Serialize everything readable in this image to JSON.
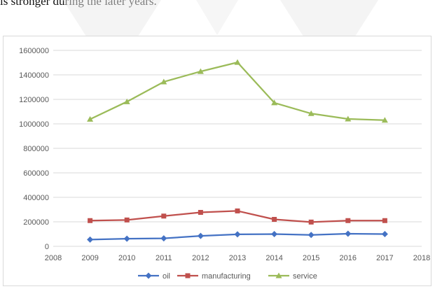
{
  "document": {
    "text_fragment": "is stronger during the later years."
  },
  "colors": {
    "oil": "#4472c4",
    "manufacturing": "#c0504d",
    "service": "#9bbb59",
    "grid": "#d9d9d9",
    "axis_text": "#595959"
  },
  "chart_data": {
    "type": "line",
    "xlabel": "",
    "ylabel": "",
    "xlim": [
      2008,
      2018
    ],
    "ylim": [
      0,
      1600000
    ],
    "x_ticks": [
      "2008",
      "2009",
      "2010",
      "2011",
      "2012",
      "2013",
      "2014",
      "2015",
      "2016",
      "2017",
      "2018"
    ],
    "y_ticks": [
      "0",
      "200000",
      "400000",
      "600000",
      "800000",
      "1000000",
      "1200000",
      "1400000",
      "1600000"
    ],
    "x": [
      2009,
      2010,
      2011,
      2012,
      2013,
      2014,
      2015,
      2016,
      2017
    ],
    "grid": true,
    "legend_position": "bottom",
    "series": [
      {
        "name": "oil",
        "marker": "diamond",
        "color": "#4472c4",
        "values": [
          55000,
          62000,
          65000,
          85000,
          98000,
          100000,
          93000,
          103000,
          100000
        ]
      },
      {
        "name": "manufacturing",
        "marker": "square",
        "color": "#c0504d",
        "values": [
          210000,
          215000,
          247000,
          277000,
          289000,
          220000,
          198000,
          210000,
          210000
        ]
      },
      {
        "name": "service",
        "marker": "triangle",
        "color": "#9bbb59",
        "values": [
          1038000,
          1181000,
          1343000,
          1428000,
          1502000,
          1172000,
          1084000,
          1040000,
          1030000
        ]
      }
    ]
  }
}
